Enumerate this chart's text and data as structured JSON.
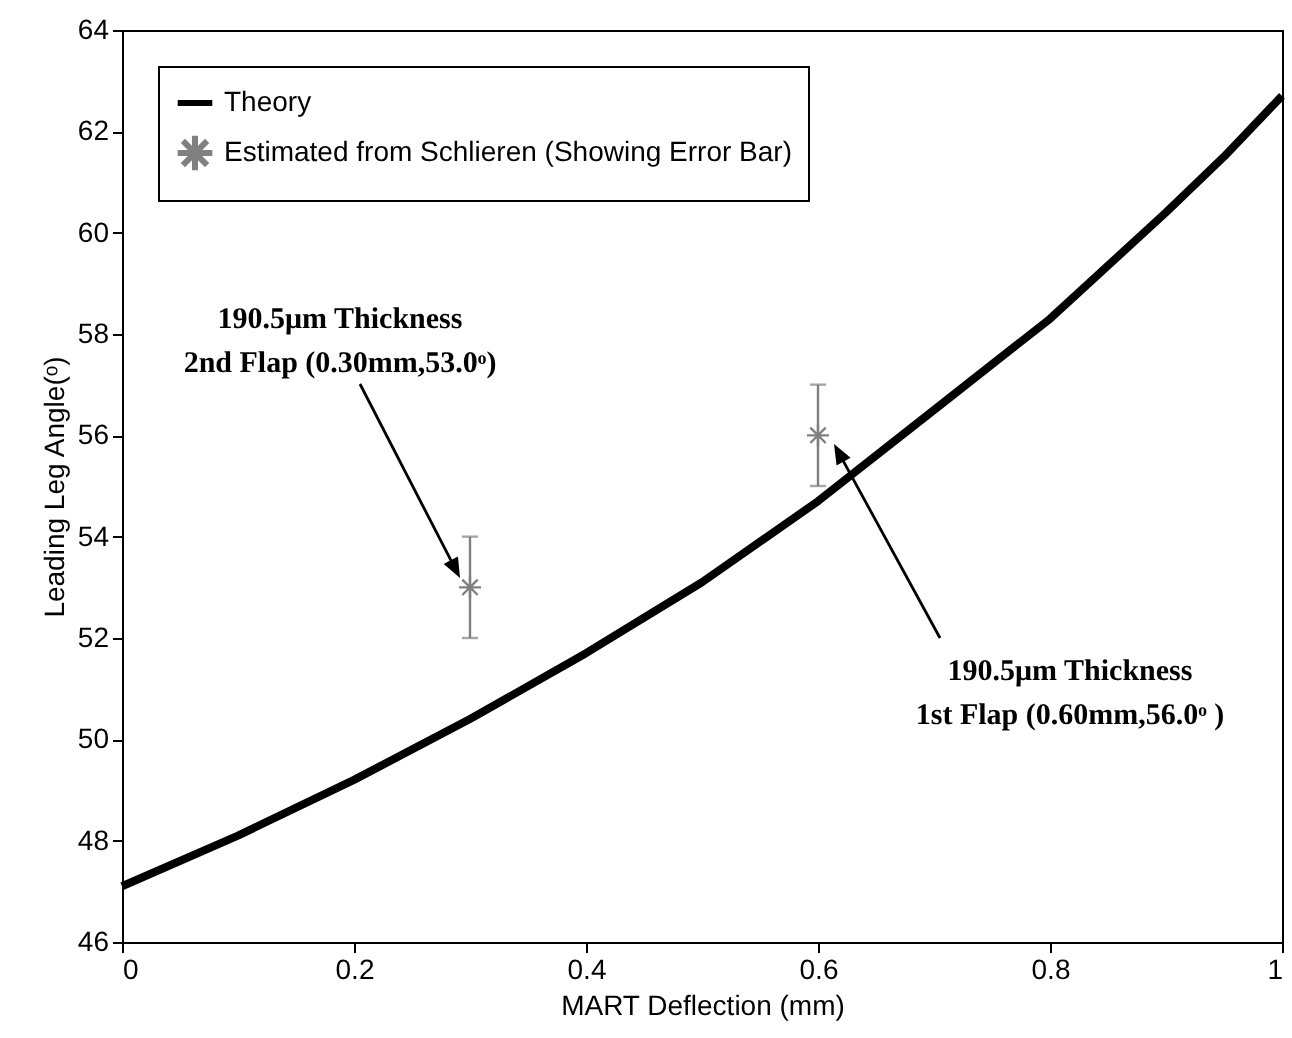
{
  "chart_data": {
    "type": "line",
    "xlabel": "MART Deflection (mm)",
    "ylabel": "Leading Leg Angle(ᵒ)",
    "xlim": [
      0,
      1
    ],
    "ylim": [
      46,
      64
    ],
    "xticks": [
      0,
      0.2,
      0.4,
      0.6,
      0.8,
      1
    ],
    "yticks": [
      46,
      48,
      50,
      52,
      54,
      56,
      58,
      60,
      62,
      64
    ],
    "grid": false,
    "legend": "top left",
    "series": [
      {
        "name": "Theory",
        "type": "line",
        "color": "#000000",
        "marker": "none",
        "line_style": "solid",
        "x": [
          0,
          0.1,
          0.2,
          0.3,
          0.4,
          0.5,
          0.6,
          0.7,
          0.8,
          0.9,
          0.95,
          1
        ],
        "values": [
          47.1,
          48.1,
          49.2,
          50.4,
          51.7,
          53.1,
          54.7,
          56.5,
          58.3,
          60.4,
          61.5,
          62.7
        ]
      },
      {
        "name": "Estimated from Schlieren (Showing Error Bar)",
        "type": "scatter",
        "color": "#808080",
        "marker": "cross",
        "x": [
          0.3,
          0.6
        ],
        "values": [
          53.0,
          56.0
        ],
        "errors": [
          1,
          1
        ]
      }
    ],
    "annotations": [
      "190.5μm Thickness\n2nd Flap (0.30mm,53.0ᵒ)",
      "190.5μm Thickness\n1st Flap (0.60mm,56.0ᵒ )"
    ]
  }
}
